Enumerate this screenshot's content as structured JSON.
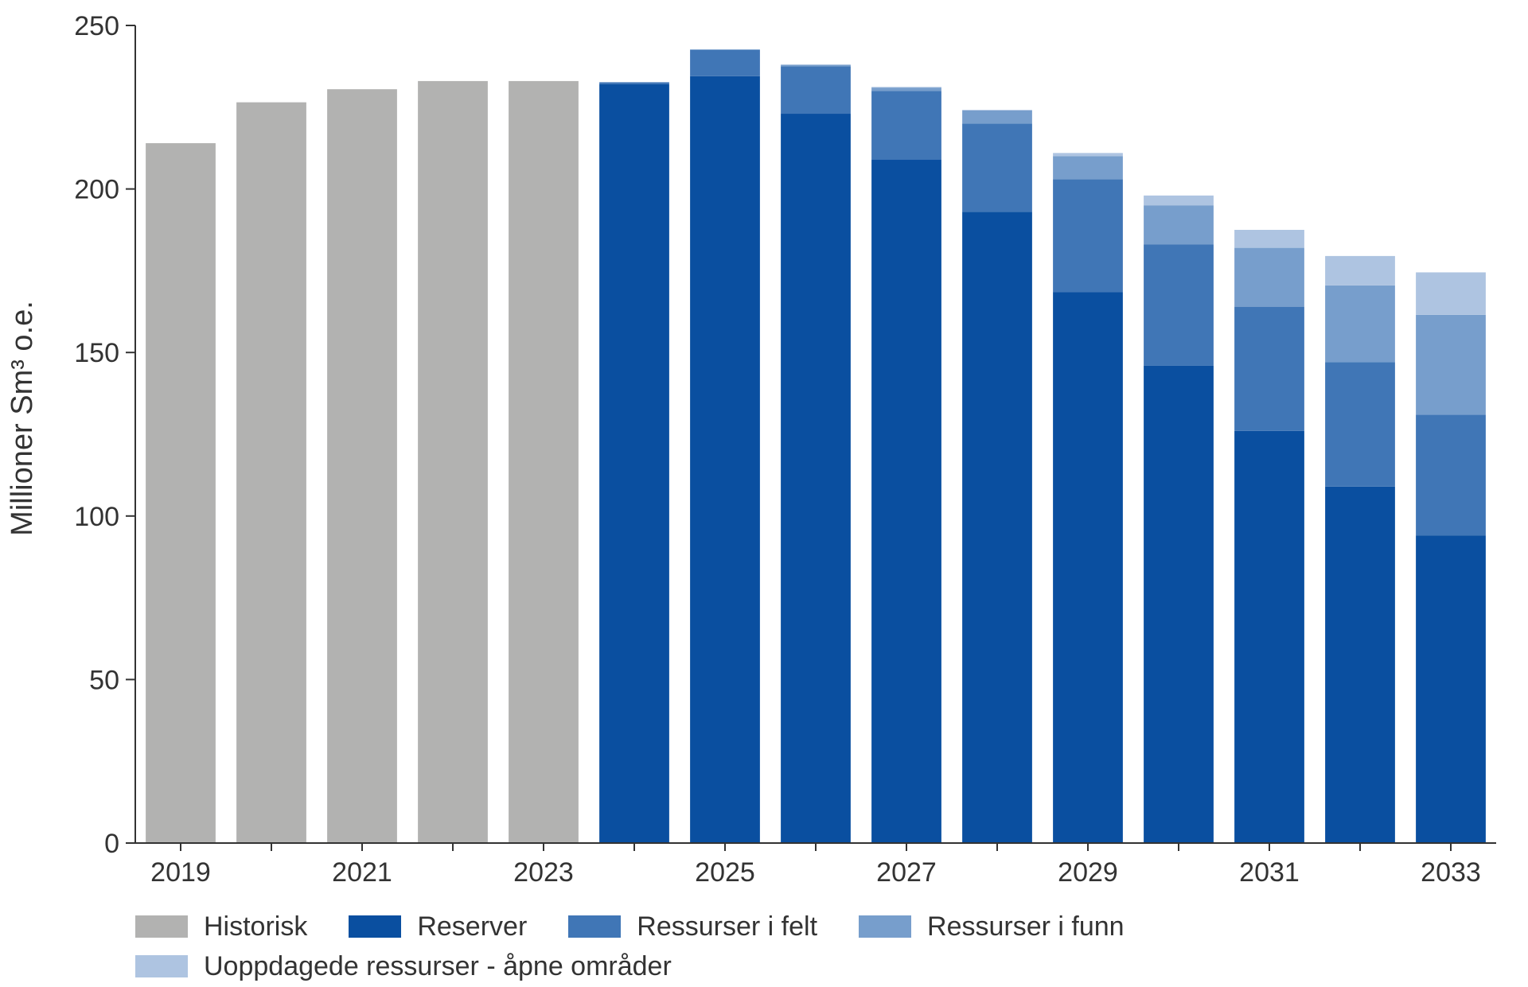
{
  "chart_data": {
    "type": "bar",
    "stacked": true,
    "title": "",
    "xlabel": "",
    "ylabel": "Millioner Sm³ o.e.",
    "ylim": [
      0,
      250
    ],
    "yticks": [
      0,
      50,
      100,
      150,
      200,
      250
    ],
    "categories": [
      "2019",
      "2020",
      "2021",
      "2022",
      "2023",
      "2024",
      "2025",
      "2026",
      "2027",
      "2028",
      "2029",
      "2030",
      "2031",
      "2032",
      "2033"
    ],
    "xtick_labels": [
      "2019",
      "2021",
      "2023",
      "2025",
      "2027",
      "2029",
      "2031",
      "2033"
    ],
    "grid": false,
    "legend_position": "bottom",
    "series": [
      {
        "name": "Historisk",
        "color": "#b2b2b1",
        "values": [
          214,
          226.5,
          230.5,
          233,
          233,
          0,
          0,
          0,
          0,
          0,
          0,
          0,
          0,
          0,
          0
        ]
      },
      {
        "name": "Reserver",
        "color": "#0a4fa0",
        "values": [
          0,
          0,
          0,
          0,
          0,
          232,
          234.5,
          223,
          209,
          193,
          168.5,
          146,
          126,
          109,
          94
        ]
      },
      {
        "name": "Ressurser i felt",
        "color": "#4076b6",
        "values": [
          0,
          0,
          0,
          0,
          0,
          0.5,
          8,
          14.5,
          21,
          27,
          34.5,
          37,
          38,
          38,
          37
        ]
      },
      {
        "name": "Ressurser i funn",
        "color": "#779ecc",
        "values": [
          0,
          0,
          0,
          0,
          0,
          0.2,
          0.2,
          0.5,
          1,
          4,
          7,
          12,
          18,
          23.5,
          30.5
        ]
      },
      {
        "name": "Uoppdagede ressurser - åpne områder",
        "color": "#aec4e1",
        "values": [
          0,
          0,
          0,
          0,
          0,
          0,
          0,
          0,
          0.2,
          0.2,
          1,
          3,
          5.5,
          9,
          13
        ]
      }
    ]
  }
}
